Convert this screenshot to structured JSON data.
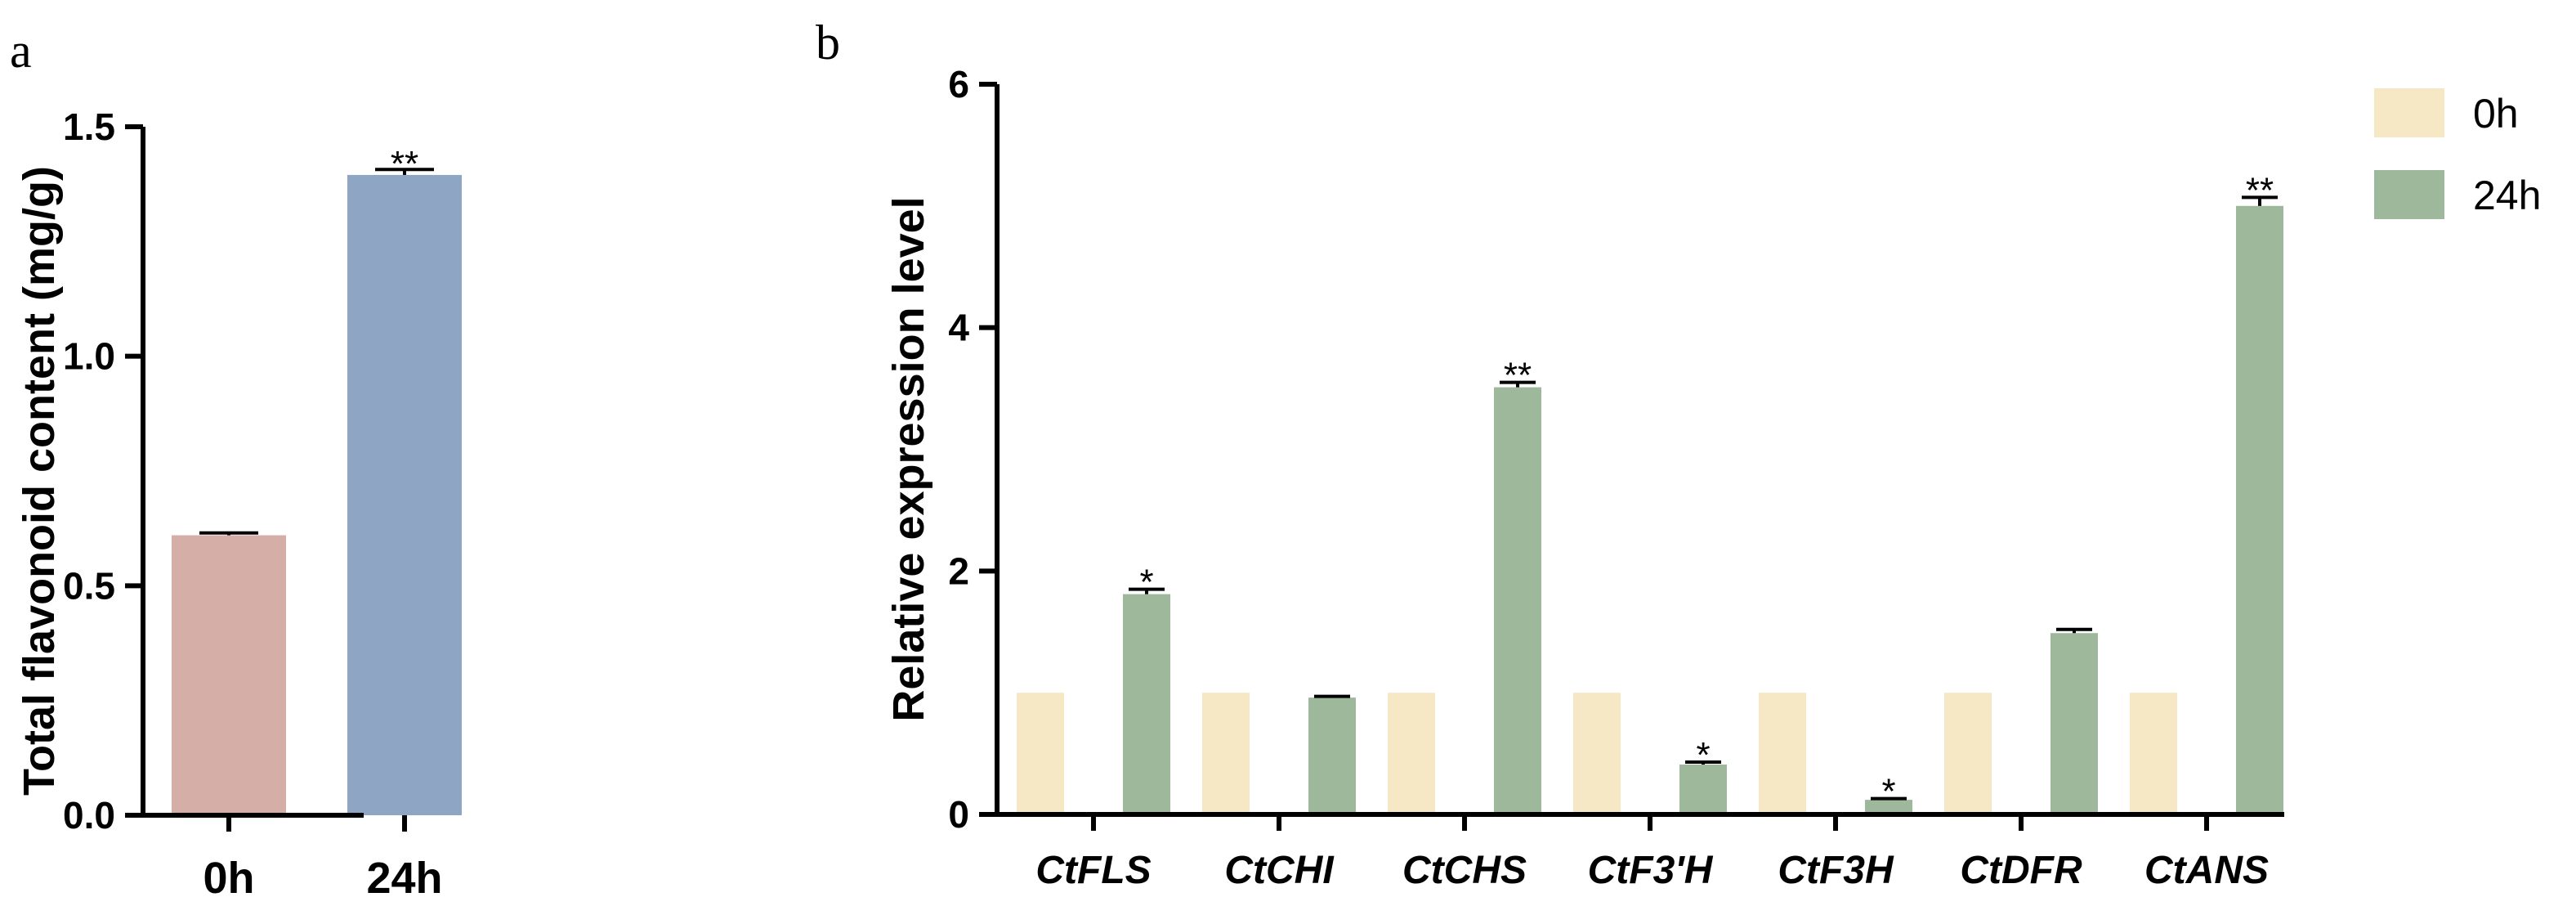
{
  "chart_data": [
    {
      "panel": "a",
      "type": "bar",
      "categories": [
        "0h",
        "24h"
      ],
      "values": [
        0.61,
        1.395
      ],
      "errors": [
        0.005,
        0.012
      ],
      "significance": [
        "",
        "**"
      ],
      "colors": [
        "#d4aea7",
        "#8ea5c3"
      ],
      "ylabel": "Total flavonoid content (mg/g)",
      "ylim": [
        0,
        1.5
      ],
      "yticks": [
        "0.0",
        "0.5",
        "1.0",
        "1.5"
      ],
      "ytick_values": [
        0,
        0.5,
        1.0,
        1.5
      ]
    },
    {
      "panel": "b",
      "type": "bar",
      "categories": [
        "CtFLS",
        "CtCHI",
        "CtCHS",
        "CtF3'H",
        "CtF3H",
        "CtDFR",
        "CtANS"
      ],
      "series": [
        {
          "name": "0h",
          "color": "#f6e8c4",
          "values": [
            1,
            1,
            1,
            1,
            1,
            1,
            1
          ],
          "errors": [
            0,
            0,
            0,
            0,
            0,
            0,
            0
          ],
          "significance": [
            "",
            "",
            "",
            "",
            "",
            "",
            ""
          ]
        },
        {
          "name": "24h",
          "color": "#9db89b",
          "values": [
            1.81,
            0.96,
            3.51,
            0.41,
            0.12,
            1.49,
            5.0
          ],
          "errors": [
            0.04,
            0.01,
            0.04,
            0.02,
            0.01,
            0.03,
            0.07
          ],
          "significance": [
            "*",
            "",
            "**",
            "*",
            "*",
            "",
            "**"
          ]
        }
      ],
      "ylabel": "Relative expression level",
      "ylim": [
        0,
        6
      ],
      "yticks": [
        "0",
        "2",
        "4",
        "6"
      ],
      "ytick_values": [
        0,
        2,
        4,
        6
      ],
      "legend_position": "top-right"
    }
  ]
}
